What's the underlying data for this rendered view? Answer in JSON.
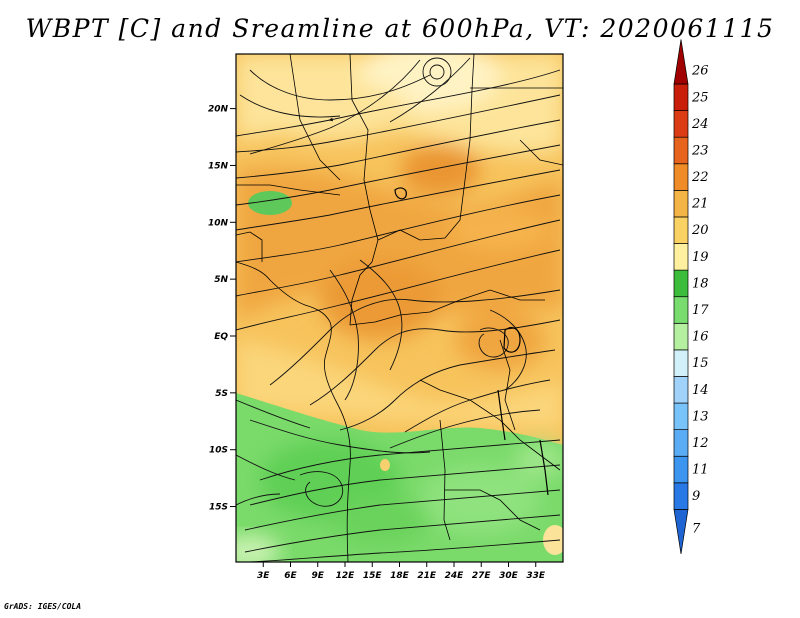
{
  "title": "WBPT [C] and Sreamline at 600hPa, VT: 2020061115",
  "credit": "GrADS: IGES/COLA",
  "map": {
    "variable": "wet-bulb potential temperature",
    "level": "600hPa",
    "valid_time": "2020061115",
    "lat_range": [
      -20,
      25
    ],
    "lon_range": [
      0,
      36
    ],
    "lat_ticks": [
      {
        "value": 20,
        "label": "20N"
      },
      {
        "value": 15,
        "label": "15N"
      },
      {
        "value": 10,
        "label": "10N"
      },
      {
        "value": 5,
        "label": "5N"
      },
      {
        "value": 0,
        "label": "EQ"
      },
      {
        "value": -5,
        "label": "5S"
      },
      {
        "value": -10,
        "label": "10S"
      },
      {
        "value": -15,
        "label": "15S"
      }
    ],
    "lon_ticks": [
      {
        "value": 3,
        "label": "3E"
      },
      {
        "value": 6,
        "label": "6E"
      },
      {
        "value": 9,
        "label": "9E"
      },
      {
        "value": 12,
        "label": "12E"
      },
      {
        "value": 15,
        "label": "15E"
      },
      {
        "value": 18,
        "label": "18E"
      },
      {
        "value": 21,
        "label": "21E"
      },
      {
        "value": 24,
        "label": "24E"
      },
      {
        "value": 27,
        "label": "27E"
      },
      {
        "value": 30,
        "label": "30E"
      },
      {
        "value": 33,
        "label": "33E"
      }
    ]
  },
  "colorbar": {
    "labels": [
      "7",
      "9",
      "11",
      "12",
      "13",
      "14",
      "15",
      "16",
      "17",
      "18",
      "19",
      "20",
      "21",
      "22",
      "23",
      "24",
      "25",
      "26"
    ],
    "colors": [
      "#1e64d2",
      "#2878e6",
      "#3c96f0",
      "#5aacf5",
      "#78c3fa",
      "#a0d2fa",
      "#d2f0fa",
      "#b4f0a0",
      "#78dc6e",
      "#3cbe3c",
      "#fff0a0",
      "#fad264",
      "#f5b446",
      "#f08c28",
      "#e6641e",
      "#dc3c14",
      "#c81e0a",
      "#a00000"
    ]
  }
}
